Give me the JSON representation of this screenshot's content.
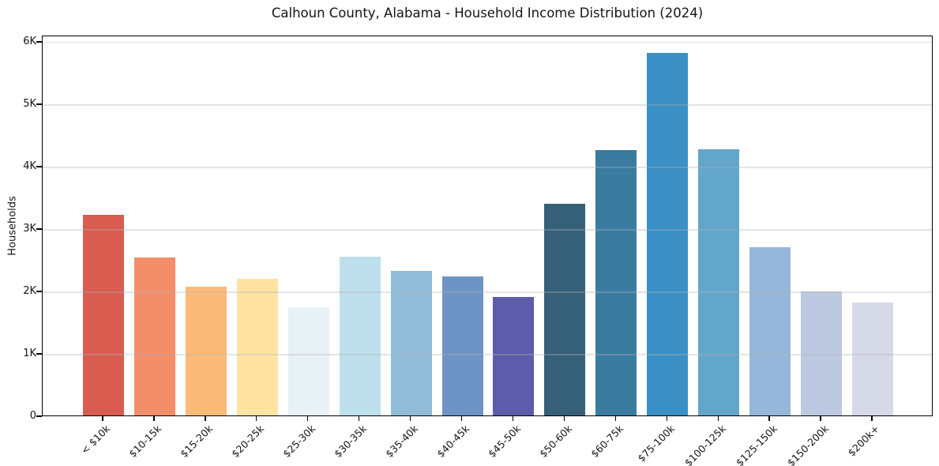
{
  "chart_data": {
    "type": "bar",
    "title": "Calhoun County, Alabama - Household Income Distribution (2024)",
    "xlabel": "",
    "ylabel": "Households",
    "categories": [
      "< $10k",
      "$10-15k",
      "$15-20k",
      "$20-25k",
      "$25-30k",
      "$30-35k",
      "$35-40k",
      "$40-45k",
      "$45-50k",
      "$50-60k",
      "$60-75k",
      "$75-100k",
      "$100-125k",
      "$125-150k",
      "$150-200k",
      "$200k+"
    ],
    "values": [
      3210,
      2530,
      2060,
      2190,
      1740,
      2540,
      2310,
      2230,
      1900,
      3390,
      4250,
      5810,
      4260,
      2690,
      1990,
      1810
    ],
    "bar_colors": [
      "#d85c50",
      "#f38e6b",
      "#fcba78",
      "#fee3a3",
      "#e8f2f6",
      "#bedfec",
      "#90bcd9",
      "#6d94c5",
      "#5d5caa",
      "#366078",
      "#3a7ba0",
      "#3a90c4",
      "#63a6cc",
      "#95b7d9",
      "#bdc9e1",
      "#d6d9e8"
    ],
    "ylim": [
      0,
      6100
    ],
    "yticks": [
      {
        "value": 0,
        "label": "0"
      },
      {
        "value": 1000,
        "label": "1K"
      },
      {
        "value": 2000,
        "label": "2K"
      },
      {
        "value": 3000,
        "label": "3K"
      },
      {
        "value": 4000,
        "label": "4K"
      },
      {
        "value": 5000,
        "label": "5K"
      },
      {
        "value": 6000,
        "label": "6K"
      }
    ],
    "grid": "horizontal-only, light gray, drawn above bars",
    "legend": "none",
    "background_color": "#ffffff",
    "axis_color": "#000000"
  }
}
